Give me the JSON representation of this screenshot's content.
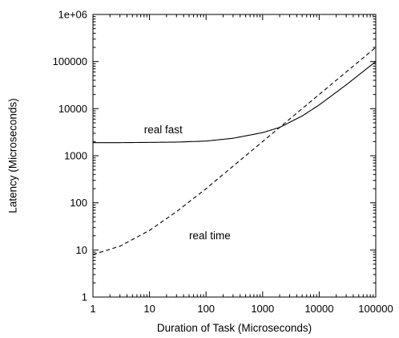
{
  "chart_data": {
    "type": "line",
    "x_scale": "log",
    "y_scale": "log",
    "xlabel": "Duration of Task (Microseconds)",
    "ylabel": "Latency (Microseconds)",
    "xlim": [
      1,
      100000
    ],
    "ylim": [
      1,
      1000000
    ],
    "x_ticks": [
      {
        "value": 1,
        "label": "1"
      },
      {
        "value": 10,
        "label": "10"
      },
      {
        "value": 100,
        "label": "100"
      },
      {
        "value": 1000,
        "label": "1000"
      },
      {
        "value": 10000,
        "label": "10000"
      },
      {
        "value": 100000,
        "label": "100000"
      }
    ],
    "y_ticks": [
      {
        "value": 1,
        "label": "1"
      },
      {
        "value": 10,
        "label": "10"
      },
      {
        "value": 100,
        "label": "100"
      },
      {
        "value": 1000,
        "label": "1000"
      },
      {
        "value": 10000,
        "label": "10000"
      },
      {
        "value": 100000,
        "label": "100000"
      },
      {
        "value": 1000000,
        "label": "1e+06"
      }
    ],
    "grid": false,
    "series": [
      {
        "name": "real fast",
        "line_style": "solid",
        "color": "#000000",
        "x": [
          1,
          3,
          10,
          30,
          100,
          300,
          1000,
          2000,
          5000,
          10000,
          30000,
          100000
        ],
        "y": [
          1900,
          1900,
          1920,
          1950,
          2050,
          2350,
          3100,
          4000,
          7000,
          12000,
          32000,
          100000
        ]
      },
      {
        "name": "real time",
        "line_style": "dashed",
        "color": "#000000",
        "x": [
          1,
          3,
          10,
          30,
          100,
          300,
          1000,
          3000,
          10000,
          30000,
          100000
        ],
        "y": [
          8,
          12,
          26,
          65,
          200,
          600,
          2000,
          6000,
          20000,
          60000,
          200000
        ]
      }
    ],
    "annotations": [
      {
        "text": "real fast",
        "x": 8,
        "y": 3000
      },
      {
        "text": "real time",
        "x": 50,
        "y": 17
      }
    ]
  }
}
